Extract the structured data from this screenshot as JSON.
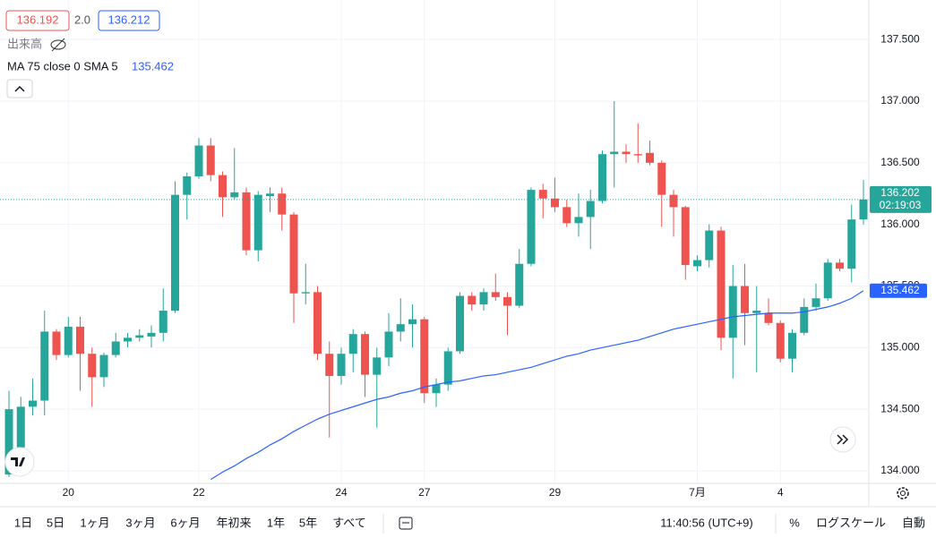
{
  "chart_data": {
    "type": "candlestick",
    "bid": 136.192,
    "spread": "2.0",
    "ask": 136.212,
    "volume_label": "出来高",
    "up_color": "#26a69a",
    "down_color": "#ef5350",
    "categories": [
      null,
      null,
      null,
      null,
      null,
      "20",
      null,
      null,
      null,
      null,
      null,
      null,
      null,
      null,
      null,
      null,
      "22",
      null,
      null,
      null,
      null,
      null,
      null,
      null,
      null,
      null,
      null,
      null,
      "24",
      null,
      null,
      null,
      null,
      null,
      null,
      "27",
      null,
      null,
      null,
      null,
      null,
      null,
      null,
      null,
      null,
      null,
      "29",
      null,
      null,
      null,
      null,
      null,
      null,
      null,
      null,
      null,
      null,
      null,
      "7月",
      null,
      null,
      null,
      null,
      null,
      null,
      "4",
      null,
      null,
      null,
      null,
      null,
      null,
      null
    ],
    "open": [
      133.97,
      134.19,
      134.52,
      134.57,
      135.13,
      134.94,
      135.17,
      134.95,
      134.76,
      134.94,
      135.05,
      135.08,
      135.09,
      135.12,
      135.3,
      136.24,
      136.39,
      136.64,
      136.4,
      136.22,
      136.26,
      135.79,
      136.23,
      136.25,
      136.08,
      135.44,
      135.45,
      134.95,
      134.77,
      134.95,
      135.11,
      134.78,
      134.92,
      135.13,
      135.19,
      135.23,
      134.63,
      134.7,
      134.97,
      135.42,
      135.35,
      135.45,
      135.41,
      135.34,
      135.68,
      136.28,
      136.21,
      136.14,
      136.01,
      136.06,
      136.19,
      136.57,
      136.59,
      136.57,
      136.58,
      136.5,
      136.24,
      136.14,
      135.66,
      135.71,
      135.95,
      135.08,
      135.5,
      135.28,
      135.28,
      135.2,
      134.91,
      135.12,
      135.33,
      135.4,
      135.69,
      135.64,
      136.04
    ],
    "high": [
      134.65,
      134.6,
      134.75,
      135.3,
      135.15,
      135.25,
      135.25,
      135.0,
      134.96,
      135.12,
      135.12,
      135.15,
      135.18,
      135.48,
      136.35,
      136.42,
      136.7,
      136.7,
      136.43,
      136.62,
      136.3,
      136.27,
      136.3,
      136.3,
      136.1,
      135.68,
      135.5,
      135.05,
      135.0,
      135.15,
      135.13,
      135.0,
      135.28,
      135.4,
      135.35,
      135.25,
      134.75,
      135.0,
      135.45,
      135.45,
      135.48,
      135.6,
      135.45,
      135.8,
      136.3,
      136.33,
      136.38,
      136.2,
      136.25,
      136.28,
      136.6,
      137.0,
      136.65,
      136.82,
      136.68,
      136.52,
      136.28,
      136.15,
      135.75,
      136.0,
      135.98,
      135.67,
      135.68,
      135.5,
      135.4,
      135.22,
      135.15,
      135.4,
      135.52,
      135.72,
      135.72,
      136.16,
      136.36
    ],
    "low": [
      133.95,
      134.0,
      134.45,
      134.45,
      134.9,
      134.92,
      134.65,
      134.52,
      134.68,
      134.92,
      135.0,
      135.05,
      135.0,
      135.05,
      135.28,
      136.04,
      136.37,
      136.35,
      136.06,
      136.2,
      135.75,
      135.7,
      136.1,
      135.95,
      135.2,
      135.35,
      134.9,
      134.27,
      134.7,
      134.8,
      134.6,
      134.35,
      134.85,
      135.05,
      135.0,
      134.55,
      134.52,
      134.65,
      134.95,
      135.3,
      135.3,
      135.38,
      135.1,
      135.32,
      135.66,
      136.05,
      136.1,
      135.98,
      135.9,
      135.8,
      136.17,
      136.3,
      136.5,
      136.5,
      136.48,
      135.98,
      135.9,
      135.55,
      135.62,
      135.65,
      134.98,
      134.75,
      135.02,
      134.8,
      135.18,
      134.88,
      134.8,
      135.1,
      135.3,
      135.38,
      135.62,
      135.53,
      136.0
    ],
    "close": [
      134.5,
      134.52,
      134.57,
      135.13,
      134.94,
      135.17,
      134.95,
      134.76,
      134.94,
      135.05,
      135.08,
      135.1,
      135.12,
      135.3,
      136.24,
      136.39,
      136.64,
      136.4,
      136.22,
      136.26,
      135.79,
      136.24,
      136.25,
      136.08,
      135.44,
      135.45,
      134.95,
      134.77,
      134.95,
      135.11,
      134.78,
      134.92,
      135.13,
      135.19,
      135.23,
      134.63,
      134.7,
      134.97,
      135.42,
      135.35,
      135.45,
      135.41,
      135.34,
      135.68,
      136.28,
      136.21,
      136.14,
      136.01,
      136.06,
      136.19,
      136.57,
      136.59,
      136.57,
      136.56,
      136.5,
      136.24,
      136.14,
      135.67,
      135.71,
      135.95,
      135.08,
      135.5,
      135.28,
      135.3,
      135.2,
      134.91,
      135.12,
      135.33,
      135.4,
      135.69,
      135.64,
      136.04,
      136.202
    ],
    "countdown": "02:19:03",
    "ma": {
      "name": "MA 75 close 0 SMA 5",
      "color": "#2962ff",
      "values": [
        null,
        null,
        null,
        null,
        null,
        null,
        null,
        null,
        null,
        null,
        null,
        null,
        null,
        null,
        null,
        null,
        null,
        133.93,
        133.99,
        134.04,
        134.1,
        134.15,
        134.21,
        134.26,
        134.32,
        134.37,
        134.42,
        134.46,
        134.49,
        134.52,
        134.55,
        134.58,
        134.6,
        134.63,
        134.65,
        134.68,
        134.7,
        134.72,
        134.73,
        134.75,
        134.77,
        134.78,
        134.8,
        134.82,
        134.84,
        134.87,
        134.9,
        134.93,
        134.95,
        134.98,
        135.0,
        135.02,
        135.04,
        135.06,
        135.09,
        135.12,
        135.15,
        135.17,
        135.19,
        135.21,
        135.23,
        135.25,
        135.26,
        135.27,
        135.28,
        135.28,
        135.28,
        135.29,
        135.31,
        135.33,
        135.36,
        135.4,
        135.462
      ]
    },
    "ylim": [
      133.898,
      137.821
    ],
    "yticks": [
      {
        "value": 134,
        "label": "134.000"
      },
      {
        "value": 134.5,
        "label": "134.500"
      },
      {
        "value": 135,
        "label": "135.000"
      },
      {
        "value": 135.5,
        "label": "135.500"
      },
      {
        "value": 136,
        "label": "136.000"
      },
      {
        "value": 136.5,
        "label": "136.500"
      },
      {
        "value": 137,
        "label": "137.000"
      },
      {
        "value": 137.5,
        "label": "137.500"
      }
    ],
    "grid": true
  },
  "toolbar": {
    "ranges": [
      "1日",
      "5日",
      "1ヶ月",
      "3ヶ月",
      "6ヶ月",
      "年初来",
      "1年",
      "5年",
      "すべて"
    ],
    "time": "11:40:56 (UTC+9)",
    "percent": "%",
    "log_scale": "ログスケール",
    "auto": "自動"
  }
}
